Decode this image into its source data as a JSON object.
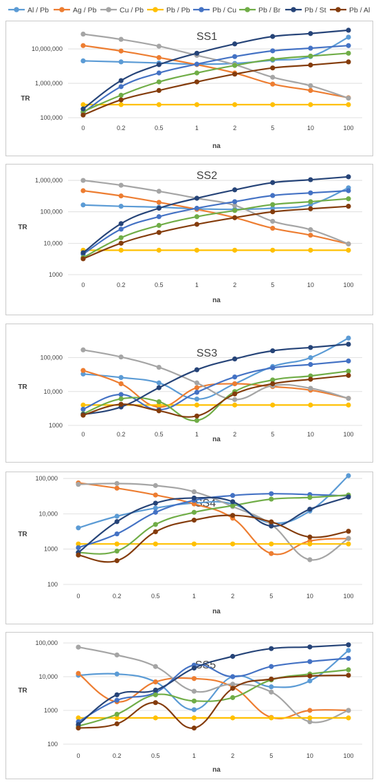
{
  "legend": [
    {
      "name": "Al / Pb",
      "color": "#5b9bd5"
    },
    {
      "name": "Ag / Pb",
      "color": "#ed7d31"
    },
    {
      "name": "Cu / Pb",
      "color": "#a5a5a5"
    },
    {
      "name": "Pb / Pb",
      "color": "#ffc000"
    },
    {
      "name": "Pb / Cu",
      "color": "#4472c4"
    },
    {
      "name": "Pb / Br",
      "color": "#70ad47"
    },
    {
      "name": "Pb / St",
      "color": "#264478"
    },
    {
      "name": "Pb / Al",
      "color": "#843c0c"
    }
  ],
  "chart_data": [
    {
      "type": "line",
      "title": "SS1",
      "xlabel": "na",
      "ylabel": "TR",
      "yscale": "log",
      "ylim": [
        100000,
        40000000
      ],
      "categories": [
        "0",
        "0.2",
        "0.5",
        "1",
        "2",
        "5",
        "10",
        "100"
      ],
      "yticks": [
        {
          "value": 100000,
          "label": "100,000"
        },
        {
          "value": 1000000,
          "label": "1,000,000"
        },
        {
          "value": 10000000,
          "label": "10,000,000"
        }
      ],
      "series": [
        {
          "name": "Al / Pb",
          "color": "#5b9bd5",
          "values": [
            4500000,
            4200000,
            3900000,
            3600000,
            3800000,
            4700000,
            6000000,
            22000000
          ]
        },
        {
          "name": "Ag / Pb",
          "color": "#ed7d31",
          "values": [
            12500000,
            8700000,
            5600000,
            3500000,
            2000000,
            950000,
            620000,
            380000
          ]
        },
        {
          "name": "Cu / Pb",
          "color": "#a5a5a5",
          "values": [
            27000000,
            19000000,
            12000000,
            6500000,
            3500000,
            1500000,
            850000,
            370000
          ]
        },
        {
          "name": "Pb / Pb",
          "color": "#ffc000",
          "values": [
            240000,
            240000,
            240000,
            240000,
            240000,
            240000,
            240000,
            240000
          ]
        },
        {
          "name": "Pb / Cu",
          "color": "#4472c4",
          "values": [
            140000,
            800000,
            2000000,
            3600000,
            6000000,
            8800000,
            10500000,
            12500000
          ]
        },
        {
          "name": "Pb / Br",
          "color": "#70ad47",
          "values": [
            150000,
            450000,
            1100000,
            2000000,
            3300000,
            5000000,
            6200000,
            7500000
          ]
        },
        {
          "name": "Pb / St",
          "color": "#264478",
          "values": [
            180000,
            1200000,
            3500000,
            7500000,
            14000000,
            23000000,
            28000000,
            35000000
          ]
        },
        {
          "name": "Pb / Al",
          "color": "#843c0c",
          "values": [
            120000,
            330000,
            620000,
            1100000,
            1850000,
            2800000,
            3400000,
            4200000
          ]
        }
      ]
    },
    {
      "type": "line",
      "title": "SS2",
      "xlabel": "na",
      "ylabel": "TR",
      "yscale": "log",
      "ylim": [
        1000,
        1500000
      ],
      "categories": [
        "0",
        "0.2",
        "0.5",
        "1",
        "2",
        "5",
        "10",
        "100"
      ],
      "yticks": [
        {
          "value": 1000,
          "label": "1000"
        },
        {
          "value": 10000,
          "label": "10,000"
        },
        {
          "value": 100000,
          "label": "100,000"
        },
        {
          "value": 1000000,
          "label": "1,000,000"
        }
      ],
      "series": [
        {
          "name": "Al / Pb",
          "color": "#5b9bd5",
          "values": [
            165000,
            150000,
            140000,
            125000,
            120000,
            130000,
            170000,
            580000
          ]
        },
        {
          "name": "Ag / Pb",
          "color": "#ed7d31",
          "values": [
            470000,
            320000,
            200000,
            120000,
            65000,
            30000,
            18000,
            9500
          ]
        },
        {
          "name": "Cu / Pb",
          "color": "#a5a5a5",
          "values": [
            1000000,
            700000,
            450000,
            270000,
            160000,
            50000,
            27000,
            9500
          ]
        },
        {
          "name": "Pb / Pb",
          "color": "#ffc000",
          "values": [
            6000,
            6000,
            6000,
            6000,
            6000,
            6000,
            6000,
            6000
          ]
        },
        {
          "name": "Pb / Cu",
          "color": "#4472c4",
          "values": [
            4500,
            28000,
            70000,
            130000,
            210000,
            330000,
            400000,
            470000
          ]
        },
        {
          "name": "Pb / Br",
          "color": "#70ad47",
          "values": [
            3500,
            15000,
            37000,
            70000,
            110000,
            170000,
            210000,
            260000
          ]
        },
        {
          "name": "Pb / St",
          "color": "#264478",
          "values": [
            5000,
            42000,
            130000,
            270000,
            500000,
            850000,
            1050000,
            1300000
          ]
        },
        {
          "name": "Pb / Al",
          "color": "#843c0c",
          "values": [
            3200,
            10000,
            22000,
            40000,
            65000,
            100000,
            125000,
            150000
          ]
        }
      ]
    },
    {
      "type": "line",
      "title": "SS3",
      "xlabel": "na",
      "ylabel": "TR",
      "yscale": "log",
      "ylim": [
        1000,
        400000
      ],
      "categories": [
        "0",
        "0.2",
        "0.5",
        "1",
        "2",
        "5",
        "10",
        "100"
      ],
      "yticks": [
        {
          "value": 1000,
          "label": "1000"
        },
        {
          "value": 10000,
          "label": "10,000"
        },
        {
          "value": 100000,
          "label": "100,000"
        }
      ],
      "series": [
        {
          "name": "Al / Pb",
          "color": "#5b9bd5",
          "values": [
            33000,
            26000,
            18000,
            6000,
            17000,
            55000,
            100000,
            380000
          ]
        },
        {
          "name": "Ag / Pb",
          "color": "#ed7d31",
          "values": [
            42000,
            17000,
            3500,
            13000,
            17000,
            14000,
            11000,
            6300
          ]
        },
        {
          "name": "Cu / Pb",
          "color": "#a5a5a5",
          "values": [
            170000,
            105000,
            52000,
            18000,
            5800,
            15000,
            12500,
            6300
          ]
        },
        {
          "name": "Pb / Pb",
          "color": "#ffc000",
          "values": [
            4000,
            4000,
            4000,
            4000,
            4000,
            4000,
            4000,
            4000
          ]
        },
        {
          "name": "Pb / Cu",
          "color": "#4472c4",
          "values": [
            3000,
            8200,
            2900,
            9500,
            27000,
            50000,
            63000,
            80000
          ]
        },
        {
          "name": "Pb / Br",
          "color": "#70ad47",
          "values": [
            2200,
            6100,
            5000,
            1400,
            10000,
            22000,
            29000,
            40000
          ]
        },
        {
          "name": "Pb / St",
          "color": "#264478",
          "values": [
            2100,
            3500,
            13000,
            44000,
            92000,
            160000,
            200000,
            250000
          ]
        },
        {
          "name": "Pb / Al",
          "color": "#843c0c",
          "values": [
            2000,
            4200,
            2700,
            1900,
            8500,
            17000,
            23000,
            30000
          ]
        }
      ]
    },
    {
      "type": "line",
      "title": "SS4",
      "xlabel": "na",
      "ylabel": "TR",
      "yscale": "log",
      "ylim": [
        100,
        120000
      ],
      "categories": [
        "0",
        "0.2",
        "0.5",
        "1",
        "2",
        "5",
        "10",
        "100"
      ],
      "yticks": [
        {
          "value": 100,
          "label": "100"
        },
        {
          "value": 1000,
          "label": "1000"
        },
        {
          "value": 10000,
          "label": "10,000"
        },
        {
          "value": 100000,
          "label": "100,000"
        }
      ],
      "series": [
        {
          "name": "Al / Pb",
          "color": "#5b9bd5",
          "values": [
            4000,
            8500,
            14500,
            20000,
            19000,
            5500,
            12000,
            120000
          ]
        },
        {
          "name": "Ag / Pb",
          "color": "#ed7d31",
          "values": [
            75000,
            53000,
            34000,
            19000,
            7500,
            750,
            1700,
            2000
          ]
        },
        {
          "name": "Cu / Pb",
          "color": "#a5a5a5",
          "values": [
            68000,
            72000,
            63000,
            42000,
            16000,
            5000,
            500,
            2000
          ]
        },
        {
          "name": "Pb / Pb",
          "color": "#ffc000",
          "values": [
            1400,
            1400,
            1400,
            1400,
            1400,
            1400,
            1400,
            1400
          ]
        },
        {
          "name": "Pb / Cu",
          "color": "#4472c4",
          "values": [
            1100,
            2700,
            11000,
            24000,
            33000,
            37000,
            35000,
            32000
          ]
        },
        {
          "name": "Pb / Br",
          "color": "#70ad47",
          "values": [
            800,
            880,
            5000,
            11000,
            17000,
            26000,
            29000,
            34000
          ]
        },
        {
          "name": "Pb / St",
          "color": "#264478",
          "values": [
            800,
            6000,
            20000,
            28000,
            22000,
            4500,
            13500,
            30000
          ]
        },
        {
          "name": "Pb / Al",
          "color": "#843c0c",
          "values": [
            680,
            470,
            3100,
            6600,
            9000,
            5900,
            2200,
            3200
          ]
        }
      ]
    },
    {
      "type": "line",
      "title": "SS5",
      "xlabel": "na",
      "ylabel": "TR",
      "yscale": "log",
      "ylim": [
        100,
        100000
      ],
      "categories": [
        "0",
        "0.2",
        "0.5",
        "1",
        "2",
        "5",
        "10",
        "100"
      ],
      "yticks": [
        {
          "value": 100,
          "label": "100"
        },
        {
          "value": 1000,
          "label": "1000"
        },
        {
          "value": 10000,
          "label": "10,000"
        },
        {
          "value": 100000,
          "label": "100,000"
        }
      ],
      "series": [
        {
          "name": "Al / Pb",
          "color": "#5b9bd5",
          "values": [
            11000,
            12000,
            7000,
            1050,
            10000,
            5000,
            7500,
            60000
          ]
        },
        {
          "name": "Ag / Pb",
          "color": "#ed7d31",
          "values": [
            12500,
            1800,
            7000,
            8800,
            5000,
            620,
            1000,
            1000
          ]
        },
        {
          "name": "Cu / Pb",
          "color": "#a5a5a5",
          "values": [
            75000,
            44000,
            20000,
            3700,
            6000,
            3500,
            460,
            1000
          ]
        },
        {
          "name": "Pb / Pb",
          "color": "#ffc000",
          "values": [
            600,
            600,
            600,
            600,
            600,
            600,
            600,
            600
          ]
        },
        {
          "name": "Pb / Cu",
          "color": "#4472c4",
          "values": [
            460,
            2000,
            3400,
            22000,
            10000,
            20000,
            28000,
            35000
          ]
        },
        {
          "name": "Pb / Br",
          "color": "#70ad47",
          "values": [
            340,
            770,
            2900,
            1900,
            2400,
            8000,
            12000,
            16000
          ]
        },
        {
          "name": "Pb / St",
          "color": "#264478",
          "values": [
            380,
            2900,
            4000,
            18000,
            40000,
            68000,
            76000,
            88000
          ]
        },
        {
          "name": "Pb / Al",
          "color": "#843c0c",
          "values": [
            300,
            400,
            1700,
            300,
            4500,
            8500,
            10500,
            11000
          ]
        }
      ]
    }
  ]
}
